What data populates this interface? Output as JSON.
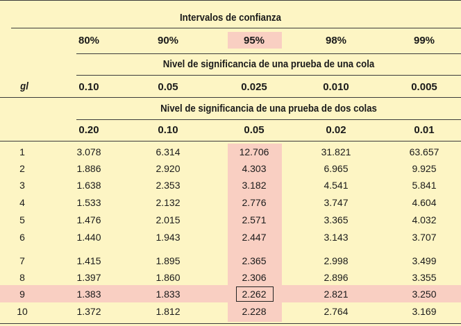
{
  "header": {
    "title": "Intervalos de confianza",
    "gl_label": "gl",
    "one_tail_label": "Nivel de significancia de una prueba de una cola",
    "two_tail_label": "Nivel de significancia de una prueba de dos colas"
  },
  "confidence": [
    "80%",
    "90%",
    "95%",
    "98%",
    "99%"
  ],
  "one_tail": [
    "0.10",
    "0.05",
    "0.025",
    "0.010",
    "0.005"
  ],
  "two_tail": [
    "0.20",
    "0.10",
    "0.05",
    "0.02",
    "0.01"
  ],
  "rows": [
    {
      "gl": "1",
      "v": [
        "3.078",
        "6.314",
        "12.706",
        "31.821",
        "63.657"
      ]
    },
    {
      "gl": "2",
      "v": [
        "1.886",
        "2.920",
        "4.303",
        "6.965",
        "9.925"
      ]
    },
    {
      "gl": "3",
      "v": [
        "1.638",
        "2.353",
        "3.182",
        "4.541",
        "5.841"
      ]
    },
    {
      "gl": "4",
      "v": [
        "1.533",
        "2.132",
        "2.776",
        "3.747",
        "4.604"
      ]
    },
    {
      "gl": "5",
      "v": [
        "1.476",
        "2.015",
        "2.571",
        "3.365",
        "4.032"
      ]
    },
    {
      "gl": "6",
      "v": [
        "1.440",
        "1.943",
        "2.447",
        "3.143",
        "3.707"
      ]
    },
    {
      "gl": "7",
      "v": [
        "1.415",
        "1.895",
        "2.365",
        "2.998",
        "3.499"
      ]
    },
    {
      "gl": "8",
      "v": [
        "1.397",
        "1.860",
        "2.306",
        "2.896",
        "3.355"
      ]
    },
    {
      "gl": "9",
      "v": [
        "1.383",
        "1.833",
        "2.262",
        "2.821",
        "3.250"
      ]
    },
    {
      "gl": "10",
      "v": [
        "1.372",
        "1.812",
        "2.228",
        "2.764",
        "3.169"
      ]
    }
  ],
  "colors": {
    "background": "#fdf5c4",
    "highlight": "#f9cfc2"
  }
}
